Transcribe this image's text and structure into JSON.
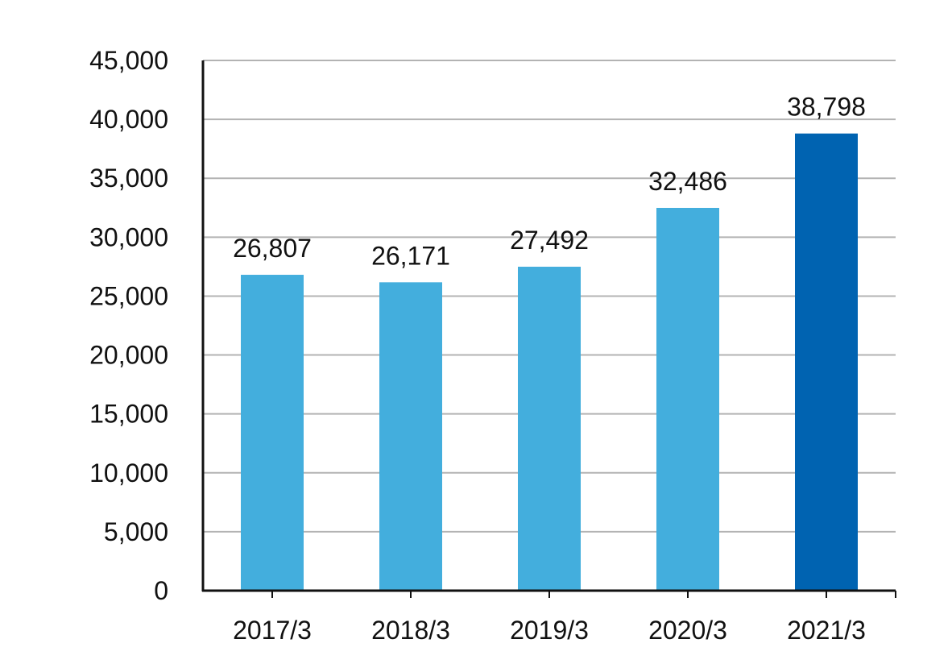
{
  "chart_data": {
    "type": "bar",
    "categories": [
      "2017/3",
      "2018/3",
      "2019/3",
      "2020/3",
      "2021/3"
    ],
    "values": [
      26807,
      26171,
      27492,
      32486,
      38798
    ],
    "data_labels": [
      "26,807",
      "26,171",
      "27,492",
      "32,486",
      "38,798"
    ],
    "ylim": [
      0,
      45000
    ],
    "yticks": [
      0,
      5000,
      10000,
      15000,
      20000,
      25000,
      30000,
      35000,
      40000,
      45000
    ],
    "ytick_labels": [
      "0",
      "5,000",
      "10,000",
      "15,000",
      "20,000",
      "25,000",
      "30,000",
      "35,000",
      "40,000",
      "45,000"
    ],
    "title": "",
    "xlabel": "",
    "ylabel": "",
    "grid": true,
    "legend": "none",
    "colors": {
      "bar": "#43aedd",
      "highlight_bar": "#0063b1",
      "grid": "#b3b3b3",
      "axis": "#111111"
    },
    "highlight_index": 4
  }
}
